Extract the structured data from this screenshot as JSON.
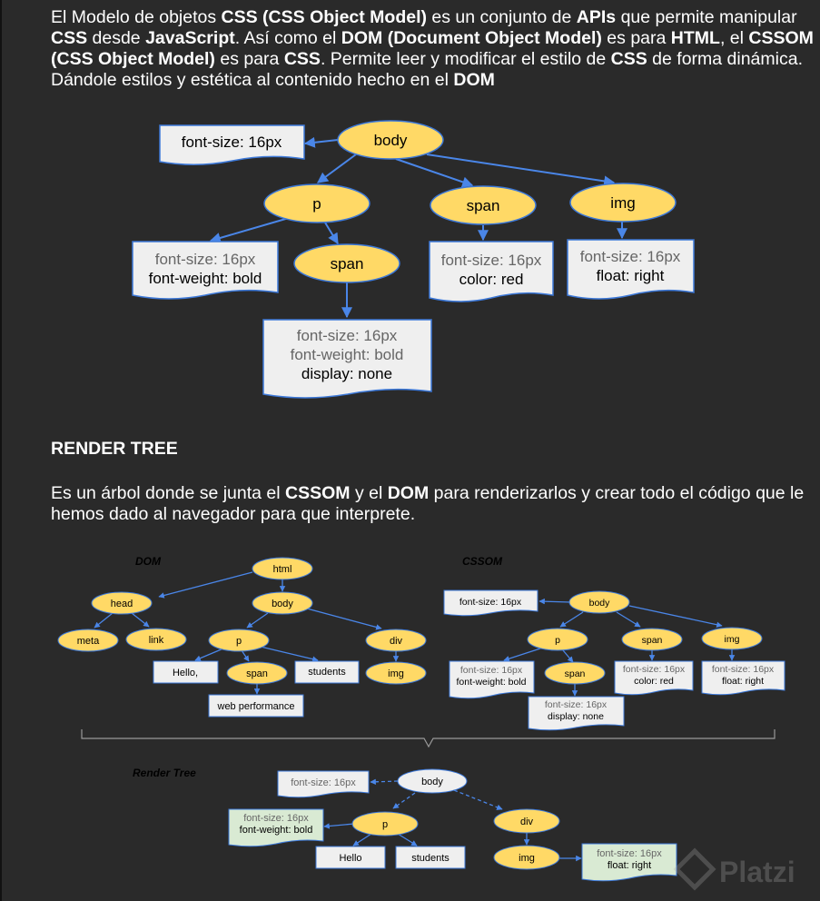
{
  "intro": {
    "runs": [
      {
        "t": "El Modelo de objetos ",
        "b": false
      },
      {
        "t": "CSS (CSS Object Model)",
        "b": true
      },
      {
        "t": " es un conjunto de ",
        "b": false
      },
      {
        "t": "APIs",
        "b": true
      },
      {
        "t": " que permite manipular ",
        "b": false
      },
      {
        "t": "CSS",
        "b": true
      },
      {
        "t": " desde ",
        "b": false
      },
      {
        "t": "JavaScript",
        "b": true
      },
      {
        "t": ". Así como el ",
        "b": false
      },
      {
        "t": "DOM (Document Object Model)",
        "b": true
      },
      {
        "t": " es para ",
        "b": false
      },
      {
        "t": "HTML",
        "b": true
      },
      {
        "t": ", el ",
        "b": false
      },
      {
        "t": "CSSOM (CSS Object Model)",
        "b": true
      },
      {
        "t": " es para ",
        "b": false
      },
      {
        "t": "CSS",
        "b": true
      },
      {
        "t": ". Permite leer y modificar el estilo de ",
        "b": false
      },
      {
        "t": "CSS",
        "b": true
      },
      {
        "t": " de forma dinámica. Dándole estilos y estética al contenido hecho en el ",
        "b": false
      },
      {
        "t": "DOM",
        "b": true
      }
    ]
  },
  "cssom_diagram": {
    "nodes": {
      "body": "body",
      "p": "p",
      "span_child": "span",
      "span": "span",
      "img": "img"
    },
    "styles": {
      "body_style": [
        "font-size: 16px"
      ],
      "p_style": [
        "font-size: 16px",
        "font-weight: bold"
      ],
      "span_child_style": [
        "font-size: 16px",
        "font-weight: bold",
        "display: none"
      ],
      "span_style": [
        "font-size: 16px",
        "color: red"
      ],
      "img_style": [
        "font-size: 16px",
        "float: right"
      ]
    }
  },
  "render_tree_section": {
    "heading": "RENDER TREE",
    "runs": [
      {
        "t": "Es un árbol donde se junta el ",
        "b": false
      },
      {
        "t": "CSSOM",
        "b": true
      },
      {
        "t": " y el ",
        "b": false
      },
      {
        "t": "DOM",
        "b": true
      },
      {
        "t": " para renderizarlos y crear todo el código que le hemos dado al navegador para que interprete.",
        "b": false
      }
    ]
  },
  "dom_mini": {
    "label": "DOM",
    "nodes": {
      "html": "html",
      "head": "head",
      "body": "body",
      "meta": "meta",
      "link": "link",
      "p": "p",
      "div": "div",
      "span": "span",
      "img": "img"
    },
    "texts": {
      "hello": "Hello,",
      "students": "students",
      "web": "web performance"
    }
  },
  "cssom_mini": {
    "label": "CSSOM",
    "nodes": {
      "body": "body",
      "p": "p",
      "span": "span",
      "img": "img",
      "span_child": "span"
    },
    "styles": {
      "body_style": [
        "font-size: 16px"
      ],
      "p_style": [
        "font-size: 16px",
        "font-weight: bold"
      ],
      "span_style": [
        "font-size: 16px",
        "color: red"
      ],
      "img_style": [
        "font-size: 16px",
        "float: right"
      ],
      "span_child_style": [
        "font-size: 16px",
        "display: none"
      ]
    }
  },
  "render_tree": {
    "label": "Render Tree",
    "nodes": {
      "body": "body",
      "p": "p",
      "div": "div",
      "img": "img"
    },
    "texts": {
      "hello": "Hello",
      "students": "students"
    },
    "styles": {
      "body_style": [
        "font-size: 16px"
      ],
      "p_style": [
        "font-size: 16px",
        "font-weight: bold"
      ],
      "img_style": [
        "font-size: 16px",
        "float: right"
      ]
    }
  },
  "watermark": {
    "text": "Platzi"
  },
  "colors": {
    "background": "#2a2a2a",
    "node_fill": "#ffd966",
    "node_stroke": "#3c78d8",
    "style_fill": "#efefef",
    "style_fill_green": "#d9ead3",
    "arrow": "#4a86e8",
    "muted_text": "#666666"
  }
}
